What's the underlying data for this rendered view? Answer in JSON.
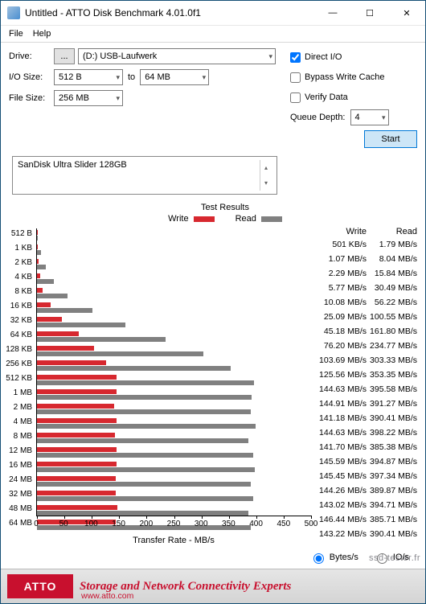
{
  "window": {
    "title": "Untitled - ATTO Disk Benchmark 4.01.0f1",
    "min_icon": "—",
    "max_icon": "☐",
    "close_icon": "✕"
  },
  "menu": {
    "file": "File",
    "help": "Help"
  },
  "form": {
    "drive_lbl": "Drive:",
    "drive_btn": "...",
    "drive_val": "(D:) USB-Laufwerk",
    "iosize_lbl": "I/O Size:",
    "iosize_from": "512 B",
    "to": "to",
    "iosize_to": "64 MB",
    "filesize_lbl": "File Size:",
    "filesize_val": "256 MB"
  },
  "opts": {
    "direct_io": "Direct I/O",
    "direct_io_checked": true,
    "bypass": "Bypass Write Cache",
    "bypass_checked": false,
    "verify": "Verify Data",
    "verify_checked": false,
    "qd_lbl": "Queue Depth:",
    "qd_val": "4",
    "start": "Start"
  },
  "device": "SanDisk Ultra Slider 128GB",
  "results": {
    "title": "Test Results",
    "write_lbl": "Write",
    "read_lbl": "Read",
    "write_color": "#d7282f",
    "read_color": "#808080",
    "xaxis": "Transfer Rate - MB/s",
    "xmax": 500,
    "xticks": [
      0,
      50,
      100,
      150,
      200,
      250,
      300,
      350,
      400,
      450,
      500
    ],
    "col_write": "Write",
    "col_read": "Read",
    "rows": [
      {
        "label": "512 B",
        "w": 0.501,
        "r": 1.79,
        "wt": "501 KB/s",
        "rt": "1.79 MB/s"
      },
      {
        "label": "1 KB",
        "w": 1.07,
        "r": 8.04,
        "wt": "1.07 MB/s",
        "rt": "8.04 MB/s"
      },
      {
        "label": "2 KB",
        "w": 2.29,
        "r": 15.84,
        "wt": "2.29 MB/s",
        "rt": "15.84 MB/s"
      },
      {
        "label": "4 KB",
        "w": 5.77,
        "r": 30.49,
        "wt": "5.77 MB/s",
        "rt": "30.49 MB/s"
      },
      {
        "label": "8 KB",
        "w": 10.08,
        "r": 56.22,
        "wt": "10.08 MB/s",
        "rt": "56.22 MB/s"
      },
      {
        "label": "16 KB",
        "w": 25.09,
        "r": 100.55,
        "wt": "25.09 MB/s",
        "rt": "100.55 MB/s"
      },
      {
        "label": "32 KB",
        "w": 45.18,
        "r": 161.8,
        "wt": "45.18 MB/s",
        "rt": "161.80 MB/s"
      },
      {
        "label": "64 KB",
        "w": 76.2,
        "r": 234.77,
        "wt": "76.20 MB/s",
        "rt": "234.77 MB/s"
      },
      {
        "label": "128 KB",
        "w": 103.69,
        "r": 303.33,
        "wt": "103.69 MB/s",
        "rt": "303.33 MB/s"
      },
      {
        "label": "256 KB",
        "w": 125.56,
        "r": 353.35,
        "wt": "125.56 MB/s",
        "rt": "353.35 MB/s"
      },
      {
        "label": "512 KB",
        "w": 144.63,
        "r": 395.58,
        "wt": "144.63 MB/s",
        "rt": "395.58 MB/s"
      },
      {
        "label": "1 MB",
        "w": 144.91,
        "r": 391.27,
        "wt": "144.91 MB/s",
        "rt": "391.27 MB/s"
      },
      {
        "label": "2 MB",
        "w": 141.18,
        "r": 390.41,
        "wt": "141.18 MB/s",
        "rt": "390.41 MB/s"
      },
      {
        "label": "4 MB",
        "w": 144.63,
        "r": 398.22,
        "wt": "144.63 MB/s",
        "rt": "398.22 MB/s"
      },
      {
        "label": "8 MB",
        "w": 141.7,
        "r": 385.38,
        "wt": "141.70 MB/s",
        "rt": "385.38 MB/s"
      },
      {
        "label": "12 MB",
        "w": 145.59,
        "r": 394.87,
        "wt": "145.59 MB/s",
        "rt": "394.87 MB/s"
      },
      {
        "label": "16 MB",
        "w": 145.45,
        "r": 397.34,
        "wt": "145.45 MB/s",
        "rt": "397.34 MB/s"
      },
      {
        "label": "24 MB",
        "w": 144.26,
        "r": 389.87,
        "wt": "144.26 MB/s",
        "rt": "389.87 MB/s"
      },
      {
        "label": "32 MB",
        "w": 143.02,
        "r": 394.71,
        "wt": "143.02 MB/s",
        "rt": "394.71 MB/s"
      },
      {
        "label": "48 MB",
        "w": 146.44,
        "r": 385.71,
        "wt": "146.44 MB/s",
        "rt": "385.71 MB/s"
      },
      {
        "label": "64 MB",
        "w": 143.22,
        "r": 390.41,
        "wt": "143.22 MB/s",
        "rt": "390.41 MB/s"
      }
    ]
  },
  "units": {
    "bytes": "Bytes/s",
    "io": "IO/s",
    "selected": "bytes"
  },
  "footer": {
    "logo": "ATTO",
    "slogan": "Storage and Network Connectivity Experts",
    "url": "www.atto.com"
  },
  "watermark": "ssd-tester.fr"
}
